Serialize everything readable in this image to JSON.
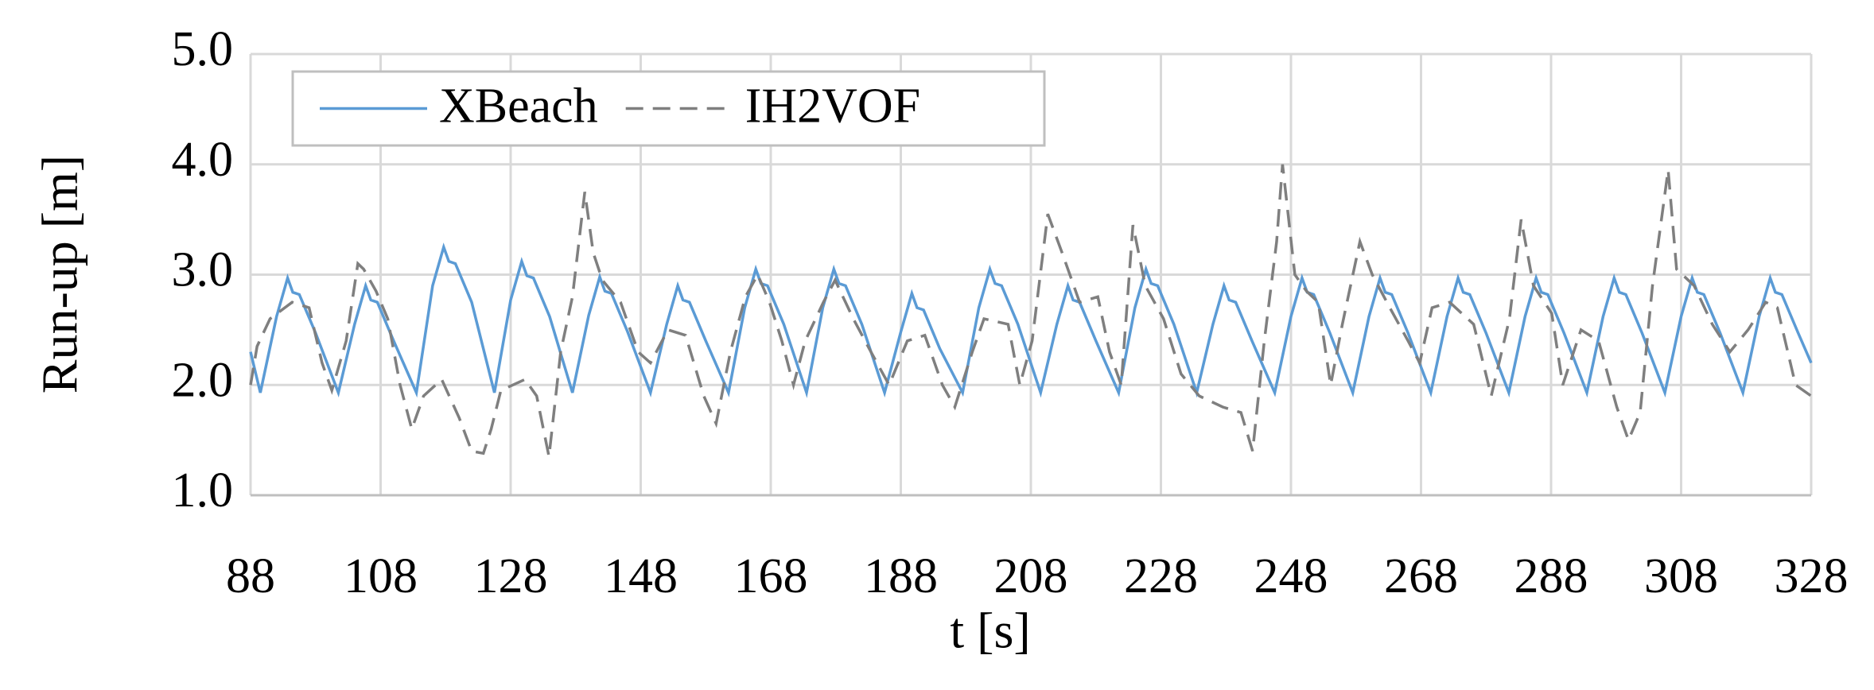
{
  "chart_data": {
    "type": "line",
    "xlabel": "t [s]",
    "ylabel": "Run-up [m]",
    "xlim": [
      88,
      328
    ],
    "xticks": [
      88,
      108,
      128,
      148,
      168,
      188,
      208,
      228,
      248,
      268,
      288,
      308,
      328
    ],
    "ylim": [
      1,
      5
    ],
    "yticks": [
      {
        "value": 1,
        "label": "1.0"
      },
      {
        "value": 2,
        "label": "2.0"
      },
      {
        "value": 3,
        "label": "3.0"
      },
      {
        "value": 4,
        "label": "4.0"
      },
      {
        "value": 5,
        "label": "5.0"
      }
    ],
    "grid": true,
    "legend": "upper left",
    "series": [
      {
        "name": "XBeach",
        "color": "#5b9bd5",
        "dash": "solid",
        "x": [
          88,
          89.5,
          92,
          93.7,
          94.5,
          95.5,
          98,
          101.5,
          104,
          105.7,
          106.5,
          107.5,
          110,
          113.5,
          116,
          117.7,
          118.5,
          119.5,
          122,
          125.5,
          128,
          129.7,
          130.5,
          131.5,
          134,
          137.5,
          140,
          141.7,
          142.5,
          143.5,
          146,
          149.5,
          152,
          153.7,
          154.5,
          155.5,
          158,
          161.5,
          164,
          165.7,
          166.5,
          167.5,
          170,
          173.5,
          176,
          177.7,
          178.5,
          179.5,
          182,
          185.5,
          188,
          189.7,
          190.5,
          191.5,
          194,
          197.5,
          200,
          201.7,
          202.5,
          203.5,
          206,
          209.5,
          212,
          213.7,
          214.5,
          215.5,
          218,
          221.5,
          224,
          225.7,
          226.5,
          227.5,
          230,
          233.5,
          236,
          237.7,
          238.5,
          239.5,
          242,
          245.5,
          248,
          249.7,
          250.5,
          251.5,
          254,
          257.5,
          260,
          261.7,
          262.5,
          263.5,
          266,
          269.5,
          272,
          273.7,
          274.5,
          275.5,
          278,
          281.5,
          284,
          285.7,
          286.5,
          287.5,
          290,
          293.5,
          296,
          297.7,
          298.5,
          299.5,
          302,
          305.5,
          308,
          309.7,
          310.5,
          311.5,
          314,
          317.5,
          320,
          321.7,
          322.5,
          323.5,
          326,
          328
        ],
        "values": [
          2.3,
          1.93,
          2.62,
          2.97,
          2.84,
          2.82,
          2.47,
          1.93,
          2.55,
          2.9,
          2.77,
          2.75,
          2.4,
          1.93,
          2.9,
          3.25,
          3.12,
          3.1,
          2.75,
          1.93,
          2.77,
          3.12,
          2.99,
          2.97,
          2.62,
          1.93,
          2.63,
          2.98,
          2.85,
          2.83,
          2.48,
          1.93,
          2.55,
          2.9,
          2.77,
          2.75,
          2.4,
          1.93,
          2.7,
          3.05,
          2.92,
          2.9,
          2.55,
          1.93,
          2.7,
          3.05,
          2.92,
          2.9,
          2.55,
          1.93,
          2.48,
          2.83,
          2.7,
          2.68,
          2.33,
          1.93,
          2.7,
          3.05,
          2.92,
          2.9,
          2.55,
          1.93,
          2.55,
          2.9,
          2.77,
          2.75,
          2.4,
          1.93,
          2.7,
          3.05,
          2.92,
          2.9,
          2.55,
          1.93,
          2.55,
          2.9,
          2.77,
          2.75,
          2.4,
          1.93,
          2.62,
          2.97,
          2.84,
          2.82,
          2.47,
          1.93,
          2.62,
          2.97,
          2.84,
          2.82,
          2.47,
          1.93,
          2.62,
          2.97,
          2.84,
          2.82,
          2.47,
          1.93,
          2.62,
          2.97,
          2.84,
          2.82,
          2.47,
          1.93,
          2.62,
          2.97,
          2.84,
          2.82,
          2.47,
          1.93,
          2.62,
          2.97,
          2.84,
          2.82,
          2.47,
          1.93,
          2.62,
          2.97,
          2.84,
          2.82,
          2.47,
          2.2
        ]
      },
      {
        "name": "IH2VOF",
        "color": "#7f7f7f",
        "dash": "dashed",
        "x": [
          88,
          89,
          91,
          94.4,
          97,
          99,
          100.5,
          102.7,
          104.5,
          105.4,
          107.3,
          109.1,
          111,
          112.8,
          114.6,
          117.4,
          120.1,
          122,
          123.8,
          125,
          126.5,
          130.2,
          132,
          133.9,
          135.7,
          137.5,
          139.4,
          140.7,
          142.1,
          144.9,
          147.6,
          149.5,
          152.2,
          154.9,
          157.7,
          159.6,
          161.8,
          164.1,
          166,
          167.8,
          169.7,
          171.5,
          173.3,
          176.1,
          177.9,
          180.7,
          183.4,
          186.2,
          189,
          191.7,
          194.4,
          196.3,
          199,
          200.8,
          204.5,
          206.3,
          208.2,
          210.6,
          212.8,
          215.5,
          218.3,
          220.1,
          221.9,
          223.7,
          225.6,
          228.4,
          231.1,
          233.9,
          237.5,
          240.3,
          242.1,
          243.9,
          245.8,
          246.7,
          248.6,
          250.4,
          252.2,
          254.1,
          255.9,
          258.6,
          260.5,
          263.2,
          266,
          267.8,
          269.7,
          272.4,
          276.1,
          278.8,
          281.6,
          283.4,
          285.3,
          288.1,
          289.8,
          292.6,
          295.3,
          298.1,
          299.9,
          301.7,
          303.6,
          306,
          307.3,
          310,
          312.8,
          315.5,
          318.3,
          321,
          322.8,
          325.6,
          328
        ],
        "values": [
          2.0,
          2.35,
          2.6,
          2.75,
          2.7,
          2.2,
          1.95,
          2.4,
          3.1,
          3.05,
          2.85,
          2.6,
          2.0,
          1.6,
          1.9,
          2.05,
          1.7,
          1.4,
          1.38,
          1.6,
          1.95,
          2.05,
          1.9,
          1.35,
          2.3,
          2.8,
          3.75,
          3.2,
          2.95,
          2.75,
          2.3,
          2.2,
          2.5,
          2.45,
          1.9,
          1.65,
          2.3,
          2.8,
          3.0,
          2.75,
          2.4,
          2.0,
          2.4,
          2.75,
          2.95,
          2.6,
          2.3,
          2.0,
          2.4,
          2.45,
          2.0,
          1.8,
          2.3,
          2.6,
          2.55,
          2.0,
          2.4,
          3.55,
          3.2,
          2.75,
          2.8,
          2.3,
          2.0,
          3.45,
          2.9,
          2.6,
          2.1,
          1.9,
          1.8,
          1.75,
          1.4,
          2.4,
          3.3,
          4.0,
          3.0,
          2.85,
          2.75,
          2.0,
          2.55,
          3.3,
          3.0,
          2.7,
          2.4,
          2.2,
          2.7,
          2.75,
          2.55,
          1.9,
          2.6,
          3.5,
          2.9,
          2.65,
          2.0,
          2.5,
          2.4,
          1.8,
          1.5,
          1.75,
          2.9,
          3.95,
          3.05,
          2.9,
          2.55,
          2.3,
          2.5,
          2.75,
          2.7,
          2.0,
          1.9
        ]
      }
    ]
  }
}
